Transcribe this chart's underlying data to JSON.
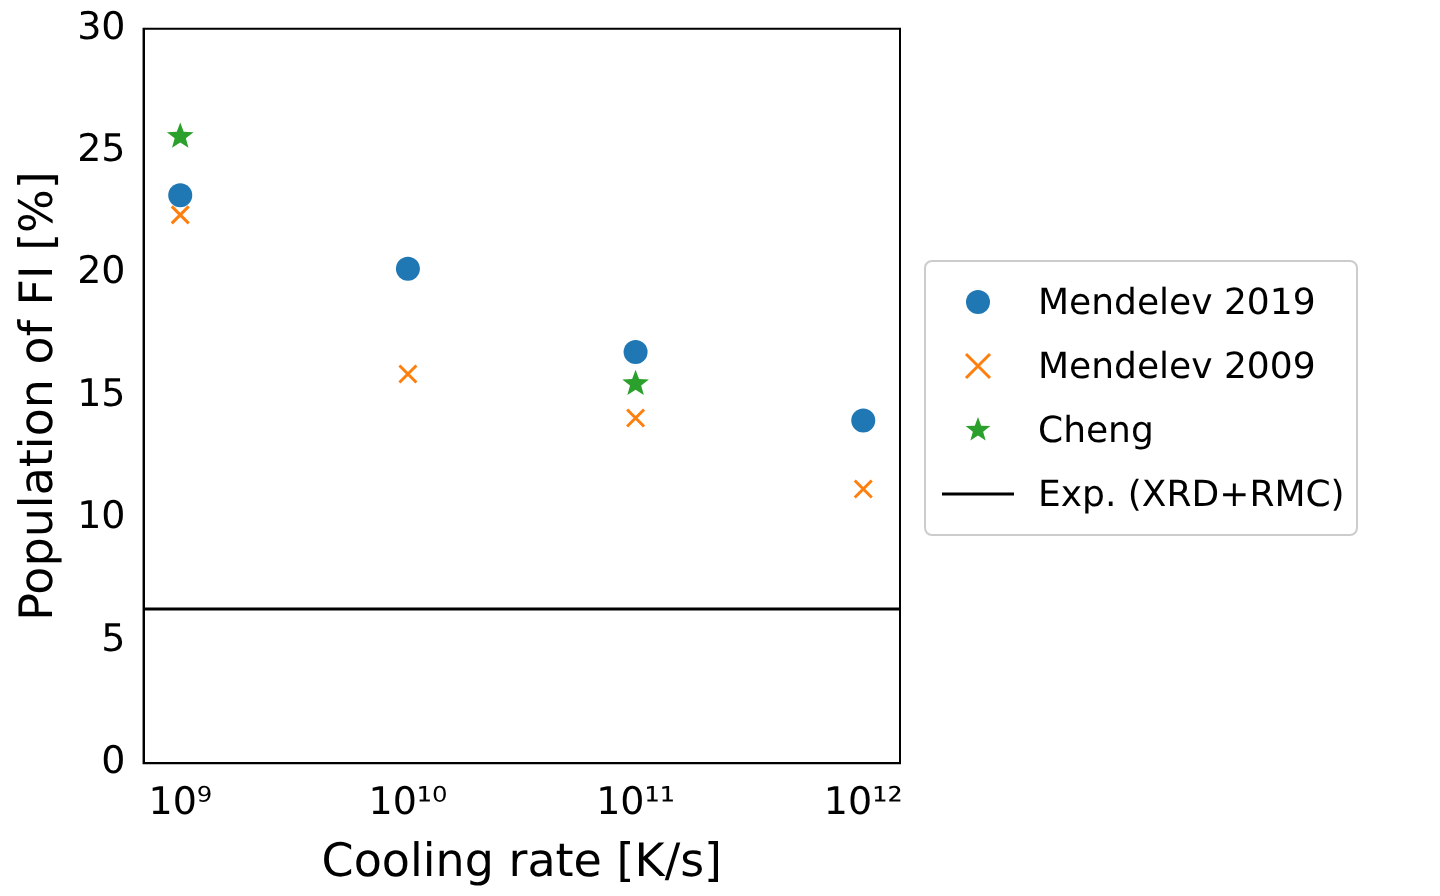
{
  "chart_data": {
    "type": "scatter",
    "xlabel": "Cooling rate [K/s]",
    "ylabel": "Population of FI [%]",
    "log": "x",
    "xlim": [
      690000000,
      1450000000000
    ],
    "xticks": [
      {
        "value": 1000000000,
        "label": "10⁹"
      },
      {
        "value": 10000000000,
        "label": "10¹⁰"
      },
      {
        "value": 100000000000,
        "label": "10¹¹"
      },
      {
        "value": 1000000000000,
        "label": "10¹²"
      }
    ],
    "ylim": [
      0,
      30
    ],
    "yticks": [
      0,
      5,
      10,
      15,
      20,
      25,
      30
    ],
    "grid": false,
    "legend": "right",
    "series": [
      {
        "name": "Mendelev 2019",
        "color": "#1f77b4",
        "marker": "circle",
        "x": [
          1000000000,
          10000000000,
          100000000000,
          1000000000000
        ],
        "values": [
          23.2,
          20.2,
          16.8,
          14.0
        ]
      },
      {
        "name": "Mendelev 2009",
        "color": "#ff7f0e",
        "marker": "cross",
        "x": [
          1000000000,
          10000000000,
          100000000000,
          1000000000000
        ],
        "values": [
          22.4,
          15.9,
          14.1,
          11.2
        ]
      },
      {
        "name": "Cheng",
        "color": "#2ca02c",
        "marker": "star",
        "x": [
          1000000000,
          100000000000
        ],
        "values": [
          25.6,
          15.5
        ]
      }
    ],
    "ref_lines": [
      {
        "axis": "y",
        "value": 6.3,
        "label": "Exp. (XRD+RMC)",
        "color": "#000000"
      }
    ]
  }
}
